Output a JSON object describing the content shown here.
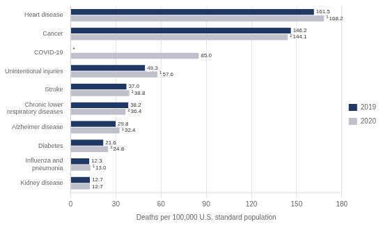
{
  "chart_data": {
    "type": "bar",
    "orientation": "horizontal",
    "categories": [
      "Kidney disease",
      "Influenza and\npneumonia",
      "Diabetes",
      "Alzheimer disease",
      "Chronic lower\nrespiratory diseases",
      "Stroke",
      "Unintentional injuries",
      "COVID-19",
      "Cancer",
      "Heart disease"
    ],
    "series": [
      {
        "name": "2019",
        "color": "#1f3864",
        "values": [
          12.7,
          12.3,
          21.6,
          29.8,
          38.2,
          37.0,
          49.3,
          null,
          146.2,
          161.5
        ],
        "value_labels": [
          "12.7",
          "12.3",
          "21.6",
          "29.8",
          "38.2",
          "37.0",
          "49.3",
          "*",
          "146.2",
          "161.5"
        ]
      },
      {
        "name": "2020",
        "color": "#c0c0cc",
        "values": [
          12.7,
          13.0,
          24.8,
          32.4,
          36.4,
          38.8,
          57.6,
          85.0,
          144.1,
          168.2
        ],
        "value_labels": [
          "12.7",
          "13.0",
          "24.8",
          "32.4",
          "36.4",
          "38.8",
          "57.6",
          "85.0",
          "144.1",
          "168.2"
        ],
        "footnotes": [
          null,
          "1",
          "1",
          "1",
          "2",
          "1",
          "1",
          null,
          "2",
          "1"
        ]
      }
    ],
    "xlabel": "Deaths per 100,000 U.S. standard population",
    "xlim": [
      0,
      180
    ],
    "xticks": [
      0,
      30,
      60,
      90,
      120,
      150,
      180
    ],
    "grid": true,
    "legend": "right",
    "data_labels": true
  }
}
